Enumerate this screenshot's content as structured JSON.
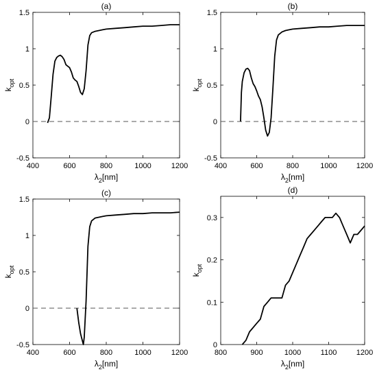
{
  "chart_data": [
    {
      "type": "line",
      "title": "(a)",
      "xlabel_main": "λ",
      "xlabel_sub": "2",
      "xlabel_rest": "[nm]",
      "ylabel_main": "k",
      "ylabel_sub": "opt",
      "xlim": [
        400,
        1200
      ],
      "ylim": [
        -0.5,
        1.5
      ],
      "xticks": [
        400,
        600,
        800,
        1000,
        1200
      ],
      "yticks": [
        -0.5,
        0,
        0.5,
        1,
        1.5
      ],
      "ytick_labels": [
        "-0.5",
        "0",
        "0.5",
        "1",
        "1.5"
      ],
      "reference_line": {
        "y": 0,
        "style": "dashed"
      },
      "series": [
        {
          "x": [
            480,
            490,
            500,
            510,
            520,
            530,
            540,
            550,
            560,
            570,
            580,
            590,
            600,
            610,
            620,
            630,
            640,
            650,
            660,
            670,
            680,
            690,
            700,
            710,
            720,
            740,
            760,
            780,
            800,
            850,
            900,
            950,
            1000,
            1050,
            1100,
            1150,
            1200
          ],
          "y": [
            -0.02,
            0.05,
            0.35,
            0.65,
            0.83,
            0.88,
            0.9,
            0.91,
            0.89,
            0.85,
            0.78,
            0.76,
            0.74,
            0.68,
            0.6,
            0.57,
            0.55,
            0.48,
            0.4,
            0.37,
            0.45,
            0.7,
            1.05,
            1.18,
            1.22,
            1.24,
            1.25,
            1.26,
            1.27,
            1.28,
            1.29,
            1.3,
            1.31,
            1.31,
            1.32,
            1.33,
            1.33
          ]
        }
      ]
    },
    {
      "type": "line",
      "title": "(b)",
      "xlabel_main": "λ",
      "xlabel_sub": "2",
      "xlabel_rest": "[nm]",
      "ylabel_main": "k",
      "ylabel_sub": "opt",
      "xlim": [
        400,
        1200
      ],
      "ylim": [
        -0.5,
        1.5
      ],
      "xticks": [
        400,
        600,
        800,
        1000,
        1200
      ],
      "yticks": [
        -0.5,
        0,
        0.5,
        1,
        1.5
      ],
      "ytick_labels": [
        "-0.5",
        "0",
        "0.5",
        "1",
        "1.5"
      ],
      "reference_line": {
        "y": 0,
        "style": "dashed"
      },
      "series": [
        {
          "x": [
            510,
            515,
            520,
            530,
            540,
            550,
            560,
            570,
            580,
            590,
            600,
            610,
            620,
            630,
            640,
            650,
            660,
            670,
            680,
            690,
            700,
            710,
            720,
            740,
            760,
            780,
            800,
            850,
            900,
            950,
            1000,
            1050,
            1100,
            1150,
            1200
          ],
          "y": [
            0.0,
            0.4,
            0.55,
            0.67,
            0.72,
            0.73,
            0.7,
            0.6,
            0.52,
            0.48,
            0.42,
            0.35,
            0.3,
            0.2,
            0.05,
            -0.12,
            -0.2,
            -0.15,
            0.05,
            0.45,
            0.9,
            1.12,
            1.19,
            1.23,
            1.25,
            1.26,
            1.27,
            1.28,
            1.29,
            1.3,
            1.3,
            1.31,
            1.32,
            1.32,
            1.32
          ]
        }
      ]
    },
    {
      "type": "line",
      "title": "(c)",
      "xlabel_main": "λ",
      "xlabel_sub": "2",
      "xlabel_rest": "[nm]",
      "ylabel_main": "k",
      "ylabel_sub": "opt",
      "xlim": [
        400,
        1200
      ],
      "ylim": [
        -0.5,
        1.5
      ],
      "xticks": [
        400,
        600,
        800,
        1000,
        1200
      ],
      "yticks": [
        -0.5,
        0,
        0.5,
        1,
        1.5
      ],
      "ytick_labels": [
        "-0.5",
        "0",
        "0.5",
        "1",
        "1.5"
      ],
      "reference_line": {
        "y": 0,
        "style": "dashed"
      },
      "series": [
        {
          "x": [
            640,
            650,
            660,
            670,
            675,
            680,
            690,
            700,
            710,
            720,
            740,
            760,
            780,
            800,
            850,
            900,
            950,
            1000,
            1050,
            1100,
            1150,
            1200
          ],
          "y": [
            0.0,
            -0.2,
            -0.35,
            -0.45,
            -0.5,
            -0.4,
            0.1,
            0.85,
            1.12,
            1.2,
            1.24,
            1.25,
            1.26,
            1.27,
            1.28,
            1.29,
            1.3,
            1.3,
            1.31,
            1.31,
            1.31,
            1.32
          ]
        }
      ]
    },
    {
      "type": "line",
      "title": "(d)",
      "xlabel_main": "λ",
      "xlabel_sub": "2",
      "xlabel_rest": "[nm]",
      "ylabel_main": "k",
      "ylabel_sub": "opt",
      "xlim": [
        800,
        1200
      ],
      "ylim": [
        0,
        0.35
      ],
      "xticks": [
        800,
        900,
        1000,
        1100,
        1200
      ],
      "yticks": [
        0,
        0.1,
        0.2,
        0.3
      ],
      "ytick_labels": [
        "0",
        "0.1",
        "0.2",
        "0.3"
      ],
      "reference_line": null,
      "series": [
        {
          "x": [
            860,
            870,
            880,
            900,
            910,
            920,
            930,
            940,
            950,
            960,
            970,
            980,
            990,
            1000,
            1010,
            1020,
            1030,
            1040,
            1050,
            1060,
            1070,
            1080,
            1090,
            1100,
            1110,
            1120,
            1130,
            1140,
            1150,
            1160,
            1170,
            1180,
            1190,
            1200
          ],
          "y": [
            0.0,
            0.01,
            0.03,
            0.05,
            0.06,
            0.09,
            0.1,
            0.11,
            0.11,
            0.11,
            0.11,
            0.14,
            0.15,
            0.17,
            0.19,
            0.21,
            0.23,
            0.25,
            0.26,
            0.27,
            0.28,
            0.29,
            0.3,
            0.3,
            0.3,
            0.31,
            0.3,
            0.28,
            0.26,
            0.24,
            0.26,
            0.26,
            0.27,
            0.28
          ]
        }
      ]
    }
  ]
}
